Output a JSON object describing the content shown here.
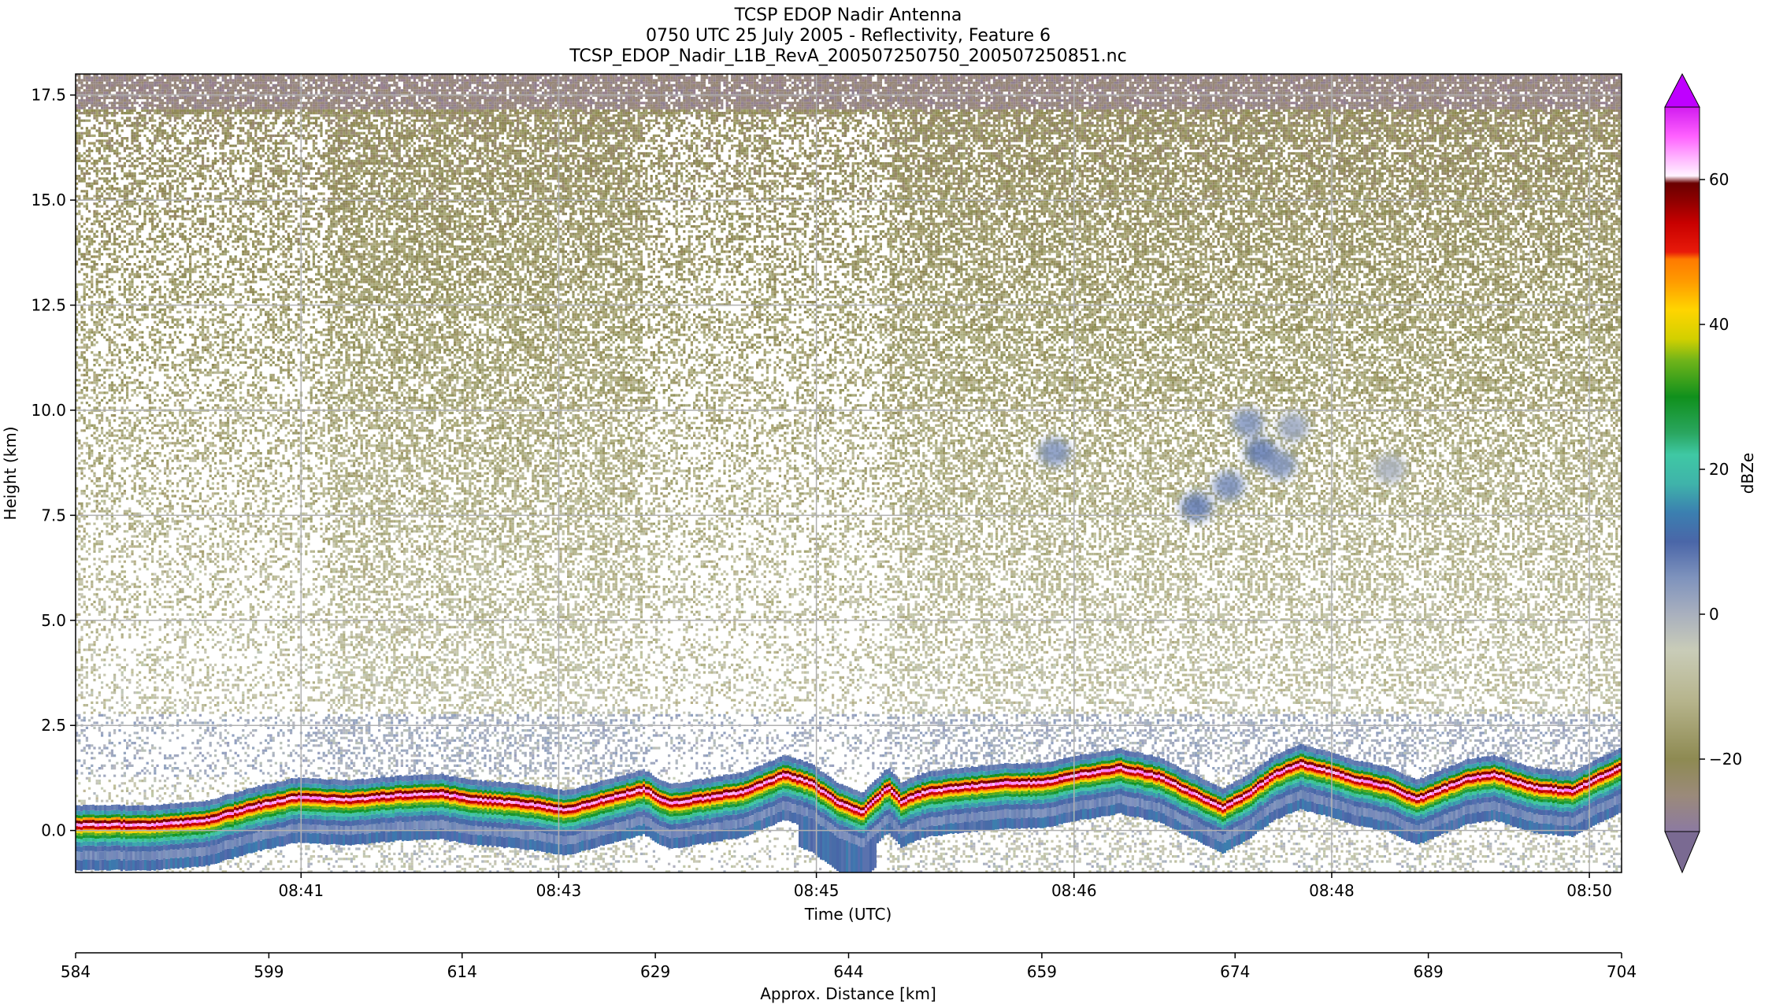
{
  "title_lines": [
    "TCSP EDOP Nadir Antenna",
    "0750 UTC 25 July 2005 - Reflectivity, Feature 6",
    "TCSP_EDOP_Nadir_L1B_RevA_200507250750_200507250851.nc"
  ],
  "chart_data": {
    "type": "heatmap",
    "ylabel": "Height (km)",
    "xlabel": "Time (UTC)",
    "x2label": "Approx. Distance [km]",
    "ylim": [
      -1.0,
      18.0
    ],
    "yticks": [
      0.0,
      2.5,
      5.0,
      7.5,
      10.0,
      12.5,
      15.0,
      17.5
    ],
    "ytick_labels": [
      "0.0",
      "2.5",
      "5.0",
      "7.5",
      "10.0",
      "12.5",
      "15.0",
      "17.5"
    ],
    "x_range_km": [
      584,
      704
    ],
    "x_ticks": [
      {
        "km": 601.5,
        "label": "08:41"
      },
      {
        "km": 621.5,
        "label": "08:43"
      },
      {
        "km": 641.5,
        "label": "08:45"
      },
      {
        "km": 661.5,
        "label": "08:46"
      },
      {
        "km": 681.5,
        "label": "08:48"
      },
      {
        "km": 701.5,
        "label": "08:50"
      }
    ],
    "x2_ticks": [
      584,
      599,
      614,
      629,
      644,
      659,
      674,
      689,
      704
    ],
    "grid": true,
    "surface_echo_km": [
      [
        584,
        0.05
      ],
      [
        590,
        0.05
      ],
      [
        594,
        0.15
      ],
      [
        598,
        0.5
      ],
      [
        601,
        0.7
      ],
      [
        605,
        0.65
      ],
      [
        609,
        0.75
      ],
      [
        612,
        0.8
      ],
      [
        615,
        0.65
      ],
      [
        619,
        0.55
      ],
      [
        622,
        0.4
      ],
      [
        625,
        0.65
      ],
      [
        628,
        0.9
      ],
      [
        630,
        0.55
      ],
      [
        633,
        0.7
      ],
      [
        636,
        0.85
      ],
      [
        639,
        1.25
      ],
      [
        641,
        1.05
      ],
      [
        643,
        0.6
      ],
      [
        645,
        0.35
      ],
      [
        647,
        0.95
      ],
      [
        648,
        0.6
      ],
      [
        650,
        0.85
      ],
      [
        653,
        0.95
      ],
      [
        656,
        1.05
      ],
      [
        659,
        1.05
      ],
      [
        662,
        1.25
      ],
      [
        665,
        1.4
      ],
      [
        668,
        1.2
      ],
      [
        671,
        0.75
      ],
      [
        673,
        0.45
      ],
      [
        675,
        0.8
      ],
      [
        677,
        1.25
      ],
      [
        679,
        1.5
      ],
      [
        681,
        1.35
      ],
      [
        683,
        1.15
      ],
      [
        686,
        0.95
      ],
      [
        688,
        0.65
      ],
      [
        690,
        0.9
      ],
      [
        692,
        1.15
      ],
      [
        694,
        1.25
      ],
      [
        697,
        0.95
      ],
      [
        700,
        0.85
      ],
      [
        702,
        1.15
      ],
      [
        704,
        1.45
      ]
    ],
    "weak_echo_cells": [
      {
        "km": 660,
        "height_km": 9.0,
        "dbz": 5
      },
      {
        "km": 671,
        "height_km": 7.7,
        "dbz": 8
      },
      {
        "km": 673.5,
        "height_km": 8.2,
        "dbz": 6
      },
      {
        "km": 675,
        "height_km": 9.7,
        "dbz": 5
      },
      {
        "km": 676,
        "height_km": 9.0,
        "dbz": 8
      },
      {
        "km": 677.5,
        "height_km": 8.7,
        "dbz": 5
      },
      {
        "km": 678.5,
        "height_km": 9.6,
        "dbz": 2
      },
      {
        "km": 686,
        "height_km": 8.6,
        "dbz": 0
      }
    ],
    "colorbar": {
      "label": "dBZe",
      "range": [
        -30,
        70
      ],
      "ticks": [
        -20,
        0,
        20,
        40,
        60
      ],
      "tick_labels": [
        "−20",
        "0",
        "20",
        "40",
        "60"
      ],
      "stops": [
        {
          "v": -30,
          "c": "#8c7aa1"
        },
        {
          "v": -25,
          "c": "#9b8a7a"
        },
        {
          "v": -20,
          "c": "#8e8a52"
        },
        {
          "v": -12,
          "c": "#b6b48c"
        },
        {
          "v": -5,
          "c": "#c9ccb8"
        },
        {
          "v": 0,
          "c": "#a9b0be"
        },
        {
          "v": 5,
          "c": "#7f93bd"
        },
        {
          "v": 10,
          "c": "#4a66a8"
        },
        {
          "v": 14,
          "c": "#3b7fb0"
        },
        {
          "v": 18,
          "c": "#3fb3aa"
        },
        {
          "v": 22,
          "c": "#3fc8a4"
        },
        {
          "v": 25,
          "c": "#2aa660"
        },
        {
          "v": 30,
          "c": "#10901c"
        },
        {
          "v": 35,
          "c": "#6fb41a"
        },
        {
          "v": 38,
          "c": "#d2d000"
        },
        {
          "v": 42,
          "c": "#ffd500"
        },
        {
          "v": 46,
          "c": "#ff9a00"
        },
        {
          "v": 49,
          "c": "#ff7a00"
        },
        {
          "v": 50,
          "c": "#e81a0a"
        },
        {
          "v": 54,
          "c": "#c80000"
        },
        {
          "v": 57,
          "c": "#900000"
        },
        {
          "v": 59.5,
          "c": "#6a0000"
        },
        {
          "v": 60.5,
          "c": "#fff4ff"
        },
        {
          "v": 63,
          "c": "#ffb4ff"
        },
        {
          "v": 66,
          "c": "#ff60ff"
        },
        {
          "v": 70,
          "c": "#d21cf0"
        }
      ],
      "extend_low_color": "#7a6a92",
      "extend_high_color": "#bf00ff"
    }
  }
}
